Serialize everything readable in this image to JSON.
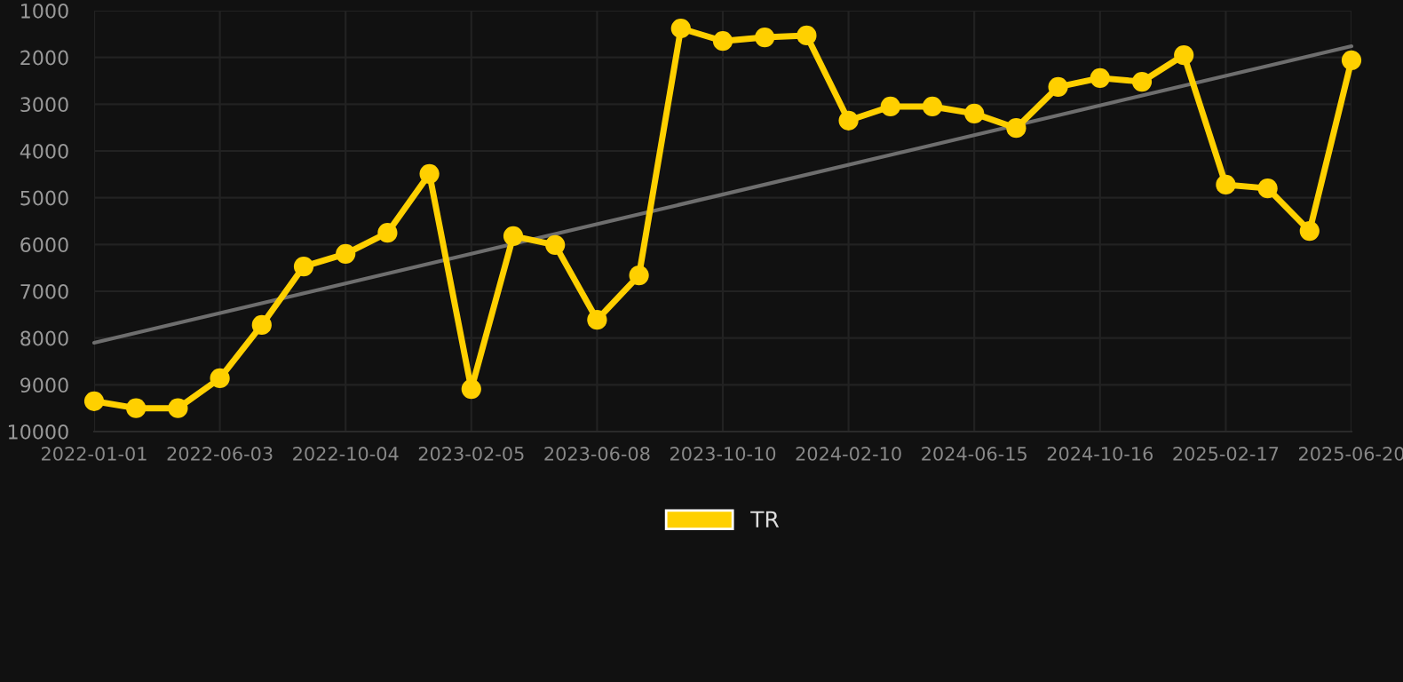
{
  "chart_data": {
    "type": "line",
    "categories": [
      "2022-01-01",
      null,
      null,
      "2022-06-03",
      null,
      null,
      "2022-10-04",
      null,
      null,
      "2023-02-05",
      null,
      null,
      "2023-06-08",
      null,
      null,
      "2023-10-10",
      null,
      null,
      "2024-02-10",
      null,
      null,
      "2024-06-15",
      null,
      null,
      "2024-10-16",
      null,
      null,
      "2025-02-17",
      null,
      null,
      "2025-06-20"
    ],
    "series": [
      {
        "name": "TR",
        "color": "#ffd000",
        "marker": "circle",
        "values": [
          9350,
          9500,
          9500,
          8860,
          7720,
          6470,
          6200,
          5750,
          4490,
          9090,
          5820,
          6010,
          7610,
          6660,
          1380,
          1650,
          1570,
          1530,
          3350,
          3050,
          3050,
          3200,
          3510,
          2630,
          2440,
          2520,
          1950,
          4720,
          4800,
          5710,
          2060
        ]
      },
      {
        "color": "#6e6e6e",
        "marker": "none",
        "values": [
          8100,
          null,
          null,
          null,
          null,
          null,
          null,
          null,
          null,
          null,
          null,
          null,
          null,
          null,
          null,
          null,
          null,
          null,
          null,
          null,
          null,
          null,
          null,
          null,
          null,
          null,
          null,
          null,
          null,
          null,
          1760
        ]
      }
    ],
    "ylim": [
      10000,
      1000
    ],
    "yticks": [
      1000,
      2000,
      3000,
      4000,
      5000,
      6000,
      7000,
      8000,
      9000,
      10000
    ],
    "grid": true,
    "legend": "bottom",
    "line_style": "solid"
  }
}
